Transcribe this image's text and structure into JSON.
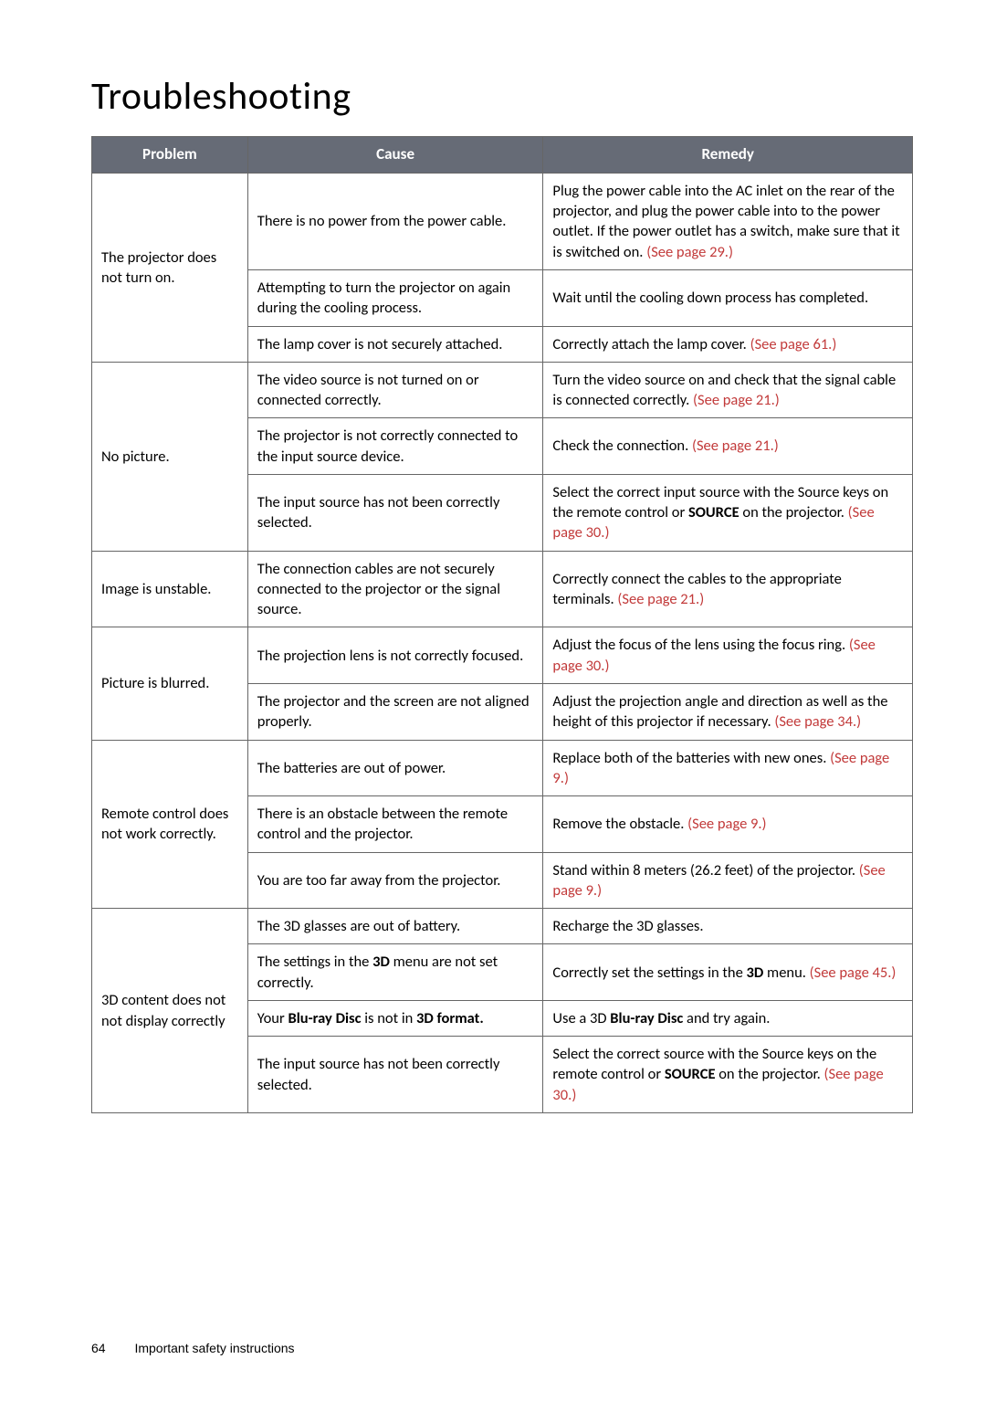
{
  "title": "Troubleshooting",
  "headers": {
    "problem": "Problem",
    "cause": "Cause",
    "remedy": "Remedy"
  },
  "rows": [
    {
      "problem": "The projector does not turn on.",
      "items": [
        {
          "cause": "There is no power from the power cable.",
          "remedy_pre": "Plug the power cable into the AC inlet on the rear of the projector, and plug the power cable into to the power outlet. If the power outlet has a switch, make sure that it is switched on. ",
          "remedy_link": "(See page 29.)",
          "remedy_post": ""
        },
        {
          "cause": "Attempting to turn the projector on again during the cooling process.",
          "remedy_pre": "Wait until the cooling down process has completed.",
          "remedy_link": "",
          "remedy_post": ""
        },
        {
          "cause": "The lamp cover is not securely attached.",
          "remedy_pre": "Correctly attach the lamp cover. ",
          "remedy_link": "(See page 61.)",
          "remedy_post": ""
        }
      ]
    },
    {
      "problem": "No picture.",
      "items": [
        {
          "cause": "The video source is not turned on or connected correctly.",
          "remedy_pre": "Turn the video source on and check that the signal cable is connected correctly. ",
          "remedy_link": "(See page 21.)",
          "remedy_post": ""
        },
        {
          "cause": "The projector is not correctly connected to the input source device.",
          "remedy_pre": "Check the connection. ",
          "remedy_link": "(See page 21.)",
          "remedy_post": ""
        },
        {
          "cause": "The input source has not been correctly selected.",
          "remedy_pre": "Select the correct input source with the Source keys on the remote control or ",
          "remedy_bold": "SOURCE",
          "remedy_mid": " on the projector. ",
          "remedy_link": "(See page 30.)",
          "remedy_post": ""
        }
      ]
    },
    {
      "problem": "Image is unstable.",
      "items": [
        {
          "cause": "The connection cables are not securely connected to the projector or the signal source.",
          "remedy_pre": "Correctly connect the cables to the appropriate terminals. ",
          "remedy_link": "(See page 21.)",
          "remedy_post": ""
        }
      ]
    },
    {
      "problem": "Picture is blurred.",
      "items": [
        {
          "cause": "The projection lens is not correctly focused.",
          "remedy_pre": "Adjust the focus of the lens using the focus ring. ",
          "remedy_link": "(See page 30.)",
          "remedy_post": ""
        },
        {
          "cause": "The projector and the screen are not aligned properly.",
          "remedy_pre": "Adjust the projection angle and direction as well as the height of this projector if necessary. ",
          "remedy_link": "(See page 34.)",
          "remedy_post": ""
        }
      ]
    },
    {
      "problem": "Remote control does not work correctly.",
      "items": [
        {
          "cause": "The batteries are out of power.",
          "remedy_pre": "Replace both of the batteries with new ones. ",
          "remedy_link": "(See page 9.)",
          "remedy_post": ""
        },
        {
          "cause": "There is an obstacle between the remote control and the projector.",
          "remedy_pre": "Remove the obstacle. ",
          "remedy_link": "(See page 9.)",
          "remedy_post": ""
        },
        {
          "cause": "You are too far away from the projector.",
          "remedy_pre": "Stand within 8 meters (26.2 feet) of the projector. ",
          "remedy_link": "(See page 9.)",
          "remedy_post": ""
        }
      ]
    },
    {
      "problem": "3D content does not not display correctly",
      "items": [
        {
          "cause": "The 3D glasses are out of battery.",
          "remedy_pre": "Recharge the 3D glasses.",
          "remedy_link": "",
          "remedy_post": ""
        },
        {
          "cause_pre": "The settings in the ",
          "cause_bold": "3D",
          "cause_post": " menu are not set correctly.",
          "remedy_pre": "Correctly set the settings in the ",
          "remedy_bold": "3D",
          "remedy_mid": " menu. ",
          "remedy_link": "(See page 45.)",
          "remedy_post": ""
        },
        {
          "cause_pre": "Your Blu-ray Disc is not in 3D format.",
          "cause_bold_range": true,
          "remedy_pre": "Use a 3D ",
          "remedy_bold": "Blu-ray Disc",
          "remedy_mid": " and try again.",
          "remedy_link": "",
          "remedy_post": ""
        },
        {
          "cause": "The input source has not been correctly selected.",
          "remedy_pre": "Select the correct source with the Source keys on the remote control or ",
          "remedy_bold": "SOURCE",
          "remedy_mid": " on the projector. ",
          "remedy_link": "(See page 30.)",
          "remedy_post": ""
        }
      ]
    }
  ],
  "footer": {
    "page": "64",
    "section": "Important safety instructions"
  },
  "colors": {
    "header_bg": "#666b76",
    "header_fg": "#ffffff",
    "link": "#c23a3a",
    "border": "#666666"
  }
}
